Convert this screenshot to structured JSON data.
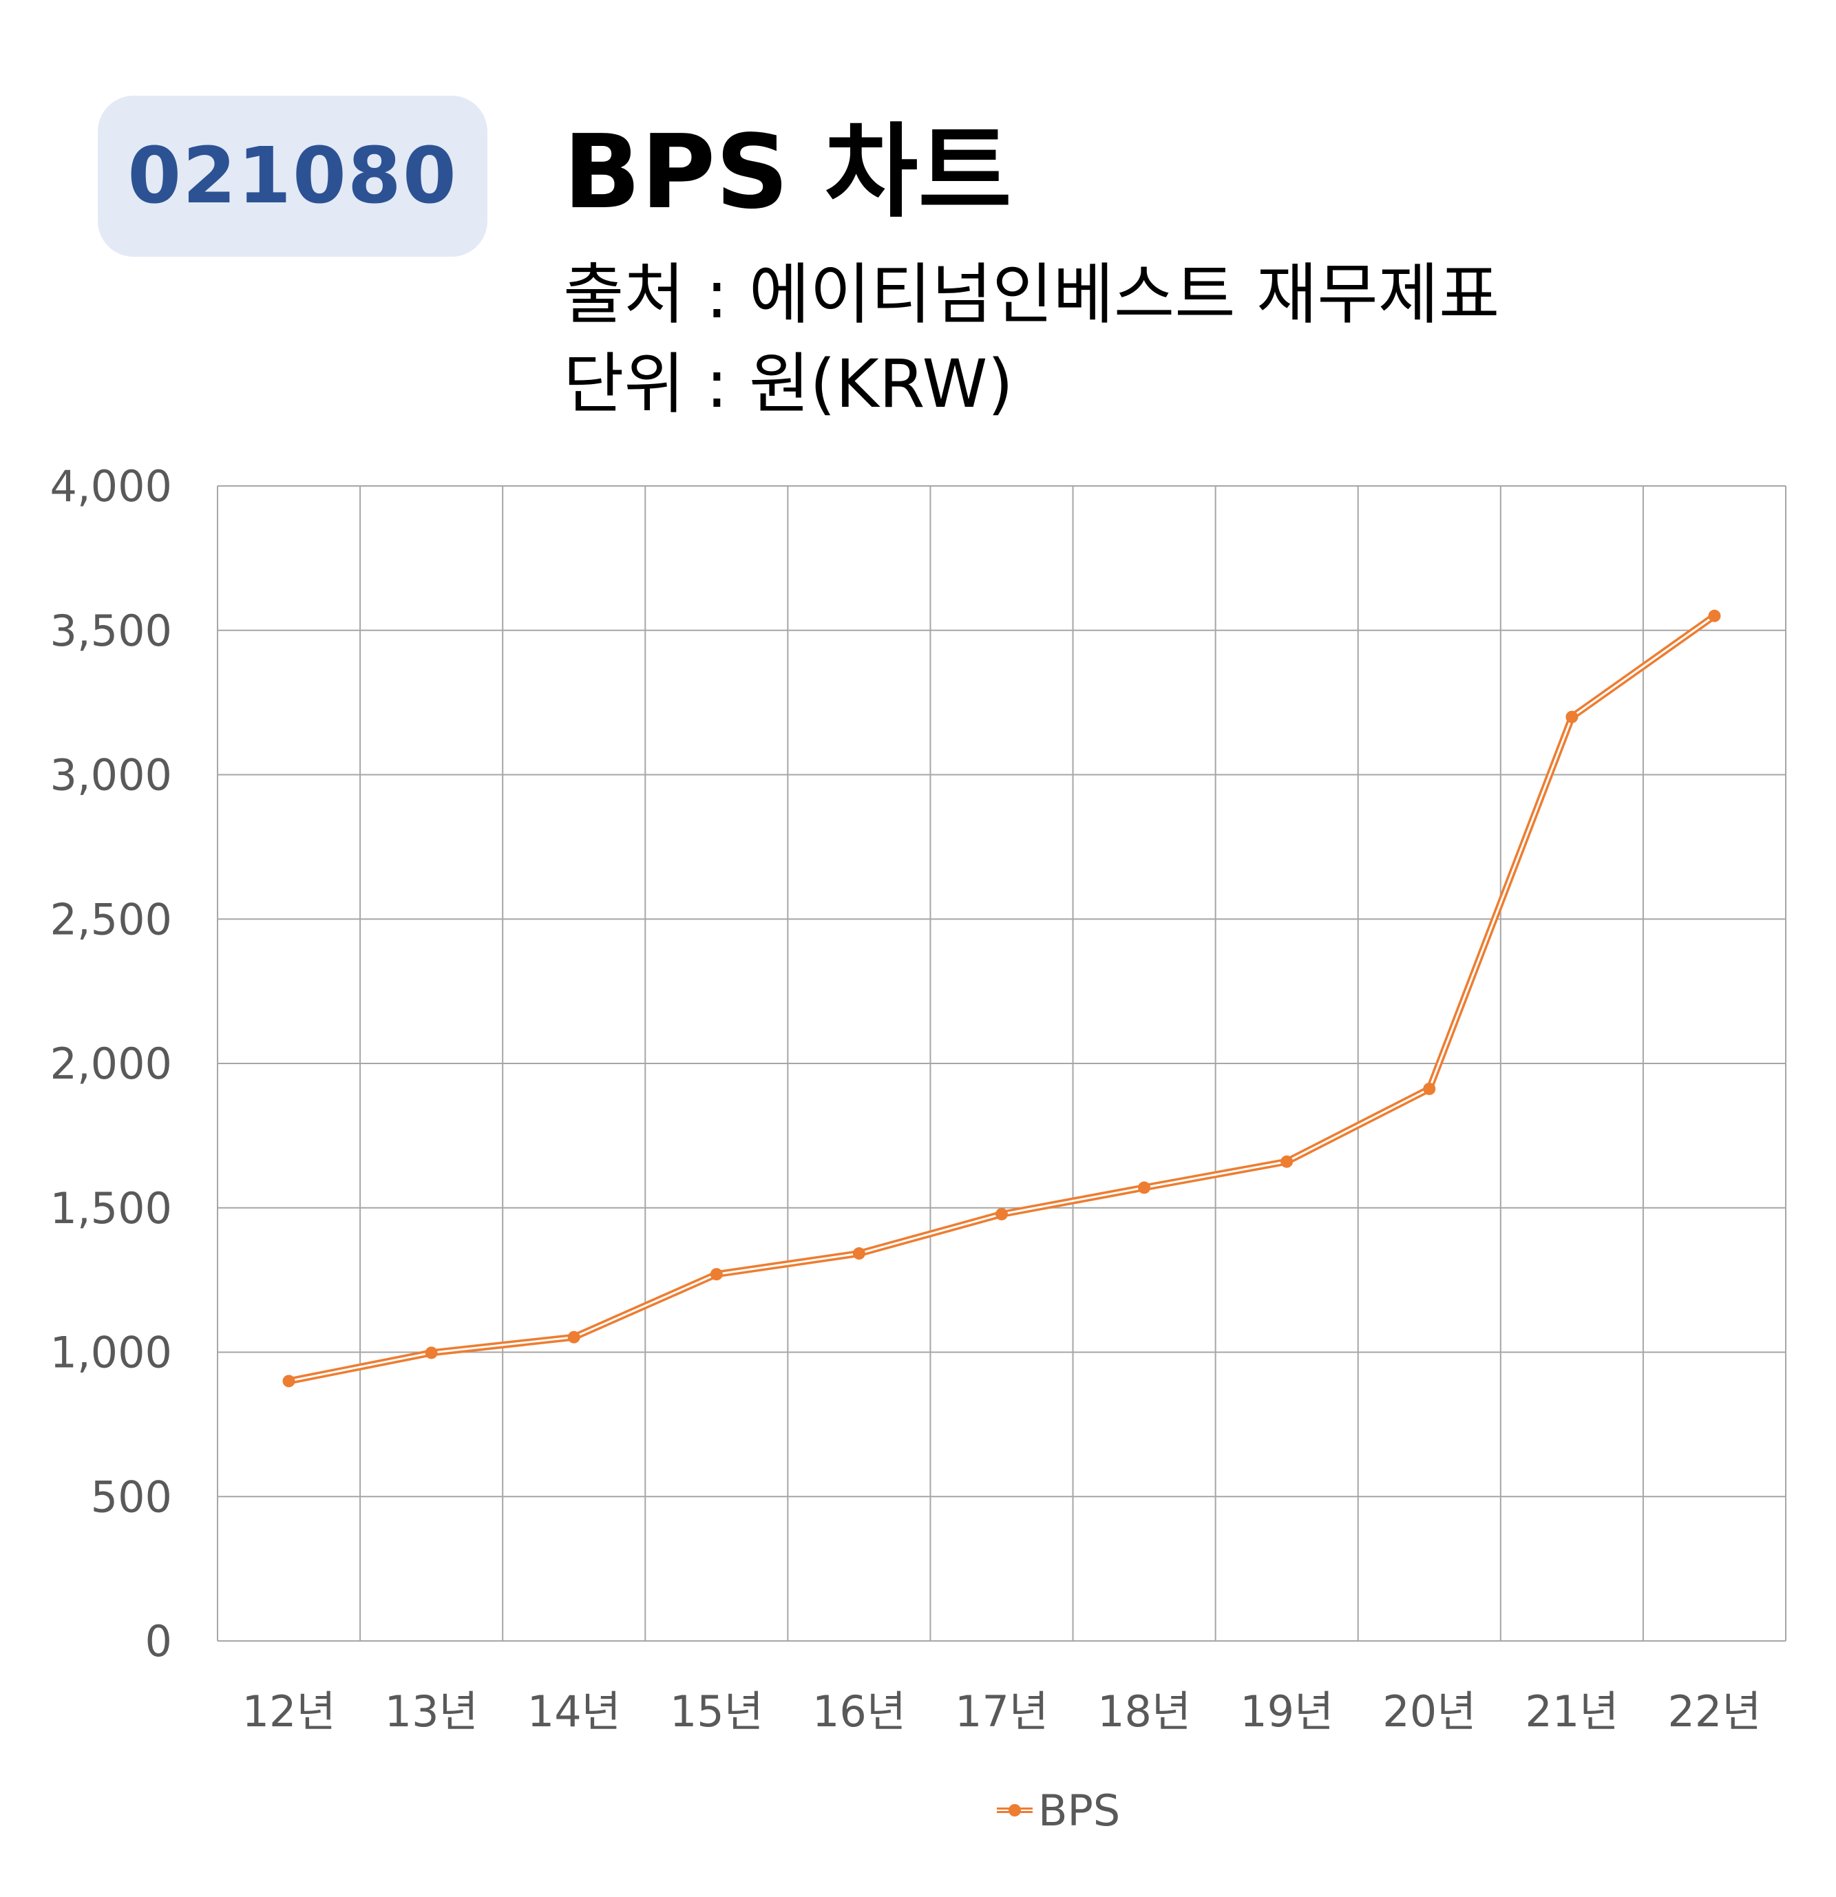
{
  "header": {
    "ticker": "021080",
    "title": "BPS 차트",
    "source": "출처 : 에이티넘인베스트 재무제표",
    "unit": "단위 : 원(KRW)"
  },
  "colors": {
    "badge_bg": "#e3e9f5",
    "badge_text": "#2c5294",
    "series": "#ed7d31",
    "grid": "#a6a6a6",
    "axis_text": "#595959"
  },
  "chart_data": {
    "type": "line",
    "title": "BPS 차트",
    "categories": [
      "12년",
      "13년",
      "14년",
      "15년",
      "16년",
      "17년",
      "18년",
      "19년",
      "20년",
      "21년",
      "22년"
    ],
    "series": [
      {
        "name": "BPS",
        "values": [
          900,
          998,
          1052,
          1270,
          1342,
          1478,
          1570,
          1660,
          1912,
          3200,
          3550
        ]
      }
    ],
    "ylim": [
      0,
      4000
    ],
    "yticks": [
      0,
      500,
      1000,
      1500,
      2000,
      2500,
      3000,
      3500,
      4000
    ],
    "ytick_labels": [
      "0",
      "500",
      "1,000",
      "1,500",
      "2,000",
      "2,500",
      "3,000",
      "3,500",
      "4,000"
    ],
    "xlabel": "",
    "ylabel": "",
    "grid": true,
    "legend": "bottom-center",
    "marker": "circle"
  }
}
